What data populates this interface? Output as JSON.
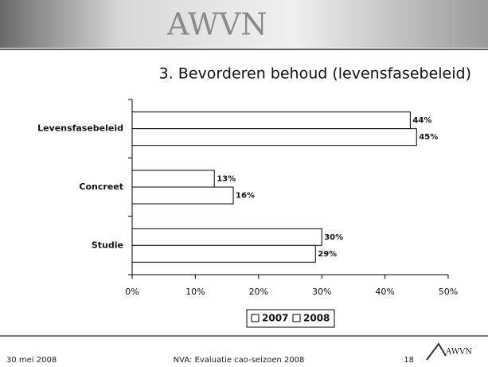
{
  "chart_data": {
    "type": "hbar",
    "title": "3. Bevorderen behoud (levensfasebeleid)",
    "categories": [
      "Levensfasebeleid",
      "Concreet",
      "Studie"
    ],
    "series": [
      {
        "name": "2007",
        "color": "#ffffff",
        "values": [
          44,
          13,
          30
        ],
        "value_labels": [
          "44%",
          "13%",
          "30%"
        ]
      },
      {
        "name": "2008",
        "color": "#ffffff",
        "values": [
          45,
          16,
          29
        ],
        "value_labels": [
          "45%",
          "16%",
          "29%"
        ]
      }
    ],
    "xlim": [
      0,
      50
    ],
    "xticks": [
      {
        "value": 0,
        "label": "0%"
      },
      {
        "value": 10,
        "label": "10%"
      },
      {
        "value": 20,
        "label": "20%"
      },
      {
        "value": 30,
        "label": "30%"
      },
      {
        "value": 40,
        "label": "40%"
      },
      {
        "value": 50,
        "label": "50%"
      }
    ],
    "legend": "bottom"
  },
  "slide": {
    "header_logo": "AWVN",
    "footer_date": "30 mei 2008",
    "footer_title": "NVA: Evaluatie cao-seizoen 2008",
    "page_number": "18",
    "footer_logo": "AWVN"
  }
}
